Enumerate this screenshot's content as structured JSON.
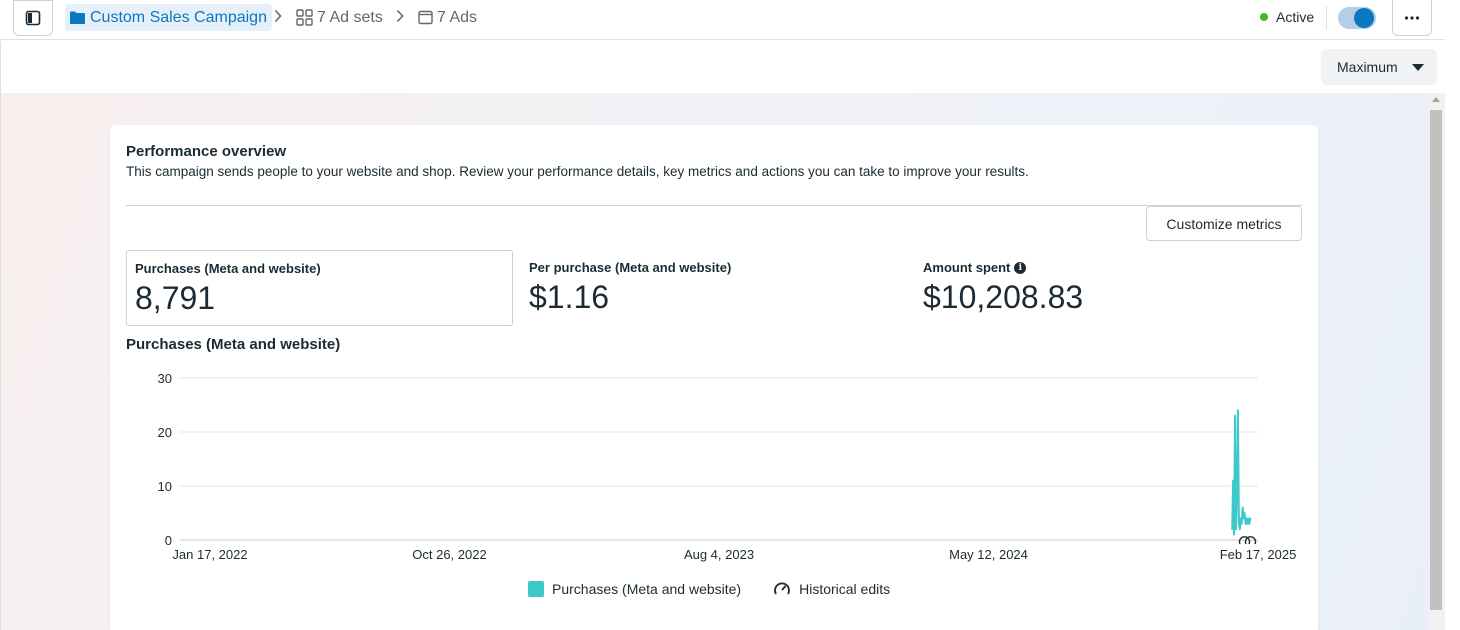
{
  "breadcrumb": {
    "campaign": "Custom Sales Campaign",
    "ad_sets": "7 Ad sets",
    "ads": "7 Ads"
  },
  "status": {
    "label": "Active",
    "color": "#42b72a",
    "toggle_on": true
  },
  "date_preset": "Maximum",
  "overview": {
    "title": "Performance overview",
    "description": "This campaign sends people to your website and shop. Review your performance details, key metrics and actions you can take to improve your results.",
    "customize_label": "Customize metrics"
  },
  "metrics": [
    {
      "label": "Purchases (Meta and website)",
      "value": "8,791",
      "selected": true
    },
    {
      "label": "Per purchase (Meta and website)",
      "value": "$1.16",
      "selected": false
    },
    {
      "label": "Amount spent",
      "value": "$10,208.83",
      "selected": false,
      "info": true
    }
  ],
  "chart_title": "Purchases (Meta and website)",
  "chart_data": {
    "type": "line",
    "title": "Purchases (Meta and website)",
    "x_ticks": [
      "Jan 17, 2022",
      "Oct 26, 2022",
      "Aug 4, 2023",
      "May 12, 2024",
      "Feb 17, 2025"
    ],
    "y_ticks": [
      0,
      10,
      20,
      30
    ],
    "ylim": [
      0,
      30
    ],
    "xlim": [
      "2022-01-17",
      "2025-02-17"
    ],
    "grid": true,
    "series": [
      {
        "name": "Purchases (Meta and website)",
        "color": "#3dc9c9",
        "x": [
          "2025-01-21",
          "2025-01-22",
          "2025-01-23",
          "2025-01-24",
          "2025-01-25",
          "2025-01-26",
          "2025-01-27",
          "2025-01-28",
          "2025-01-29",
          "2025-01-30",
          "2025-01-31",
          "2025-02-01",
          "2025-02-02",
          "2025-02-03",
          "2025-02-04",
          "2025-02-05",
          "2025-02-06",
          "2025-02-07",
          "2025-02-08",
          "2025-02-09"
        ],
        "values": [
          2,
          11,
          1,
          23,
          2,
          9,
          24,
          3,
          2,
          4,
          3,
          6,
          4,
          5,
          3,
          4,
          3,
          4,
          3,
          4
        ]
      }
    ],
    "legend": [
      "Purchases (Meta and website)",
      "Historical edits"
    ],
    "legend_position": "bottom"
  }
}
